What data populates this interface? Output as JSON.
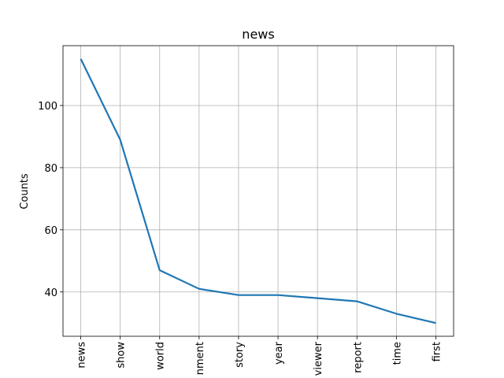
{
  "chart_data": {
    "type": "line",
    "title": "news",
    "y_label": "Counts",
    "categories": [
      "news",
      "show",
      "world",
      "nment",
      "story",
      "year",
      "viewer",
      "report",
      "time",
      "first"
    ],
    "series": [
      {
        "name": "news",
        "color": "#1f77b4",
        "values": [
          115,
          89,
          47,
          41,
          39,
          39,
          38,
          37,
          33,
          30
        ]
      }
    ],
    "ylim": [
      25.75,
      119.25
    ],
    "yticks": [
      40,
      60,
      80,
      100
    ],
    "grid": true
  }
}
